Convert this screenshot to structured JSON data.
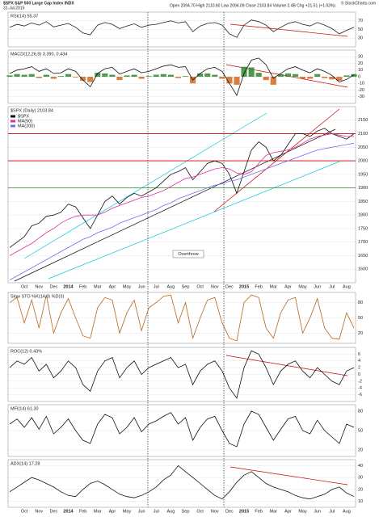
{
  "header": {
    "title": "$SPX S&P 500 Large Cap Index INDX",
    "date": "31-Jul-2015",
    "quote": "Open 2094.70 High 2110.60 Low 2094.09 Close 2103.84 Volume 2.4B Chg +21.51 (+1.03%)",
    "source": "© StockCharts.com"
  },
  "chart_data": [
    {
      "type": "line",
      "title": "RSI(14) 55.37",
      "ylim": [
        10,
        90
      ],
      "yticks": [
        30,
        50,
        70
      ],
      "grid": true,
      "series": [
        {
          "name": "RSI",
          "color": "#222222",
          "values": [
            55,
            62,
            58,
            65,
            60,
            68,
            56,
            60,
            64,
            55,
            42,
            38,
            60,
            66,
            62,
            52,
            58,
            63,
            55,
            60,
            62,
            66,
            70,
            65,
            68,
            45,
            58,
            64,
            66,
            60,
            40,
            32,
            60,
            72,
            68,
            60,
            45,
            55,
            64,
            68,
            62,
            58,
            66,
            60,
            52,
            40,
            48,
            55
          ]
        }
      ]
    },
    {
      "type": "line",
      "title": "MACD(12,26,9) 3.390, 0.434",
      "ylim": [
        -40,
        40
      ],
      "yticks": [
        -30,
        -20,
        -10,
        0,
        10,
        20,
        30
      ],
      "grid": true,
      "series": [
        {
          "name": "Histogram",
          "kind": "bar",
          "color": "#2e8b2e",
          "negative_color": "#d2691e",
          "values": [
            2,
            4,
            3,
            4,
            -2,
            3,
            -3,
            1,
            4,
            -1,
            -6,
            -8,
            6,
            5,
            3,
            -5,
            2,
            3,
            -3,
            1,
            3,
            4,
            3,
            -2,
            1,
            -10,
            5,
            5,
            3,
            -3,
            -10,
            -12,
            15,
            14,
            6,
            -5,
            -12,
            4,
            5,
            4,
            -3,
            -3,
            4,
            -2,
            -4,
            -6,
            2,
            4
          ]
        },
        {
          "name": "MACD",
          "color": "#111111",
          "values": [
            5,
            10,
            12,
            15,
            8,
            12,
            5,
            6,
            12,
            8,
            -5,
            -15,
            5,
            12,
            14,
            4,
            8,
            12,
            6,
            8,
            12,
            16,
            18,
            14,
            15,
            -5,
            5,
            12,
            14,
            8,
            -10,
            -28,
            5,
            25,
            28,
            18,
            -2,
            5,
            12,
            15,
            10,
            6,
            12,
            8,
            2,
            -8,
            -4,
            3
          ]
        }
      ]
    },
    {
      "type": "line",
      "title": "$SPX (Daily) 2103.84",
      "ylim": [
        1550,
        2200
      ],
      "yticks": [
        1600,
        1650,
        1700,
        1750,
        1800,
        1850,
        1900,
        1950,
        2000,
        2050,
        2100,
        2150
      ],
      "grid": true,
      "legend": "top-left",
      "hlines": [
        {
          "value": 2100,
          "color": "#cc0000"
        },
        {
          "value": 2000,
          "color": "#cc0000"
        },
        {
          "value": 1900,
          "color": "#2e8b2e"
        }
      ],
      "annotation": "Overthrow",
      "x_labels": [
        "Oct",
        "Nov",
        "Dec",
        "2014",
        "Feb",
        "Mar",
        "Apr",
        "May",
        "Jun",
        "Jul",
        "Aug",
        "Sep",
        "Oct",
        "Nov",
        "Dec",
        "2015",
        "Feb",
        "Mar",
        "Apr",
        "May",
        "Jun",
        "Jul",
        "Aug"
      ],
      "series": [
        {
          "name": "$SPX",
          "color": "#111111",
          "values": [
            1680,
            1700,
            1720,
            1760,
            1770,
            1795,
            1800,
            1810,
            1840,
            1830,
            1790,
            1750,
            1800,
            1850,
            1870,
            1840,
            1865,
            1880,
            1870,
            1885,
            1900,
            1925,
            1950,
            1960,
            1975,
            1930,
            1960,
            1990,
            2000,
            1990,
            1950,
            1880,
            1960,
            2040,
            2070,
            2050,
            2000,
            2020,
            2060,
            2100,
            2100,
            2090,
            2110,
            2120,
            2100,
            2090,
            2080,
            2100
          ]
        },
        {
          "name": "MA(50)",
          "color": "#e0309a",
          "values": [
            1650,
            1665,
            1680,
            1695,
            1715,
            1735,
            1750,
            1770,
            1785,
            1795,
            1800,
            1800,
            1800,
            1810,
            1825,
            1835,
            1845,
            1855,
            1865,
            1870,
            1880,
            1890,
            1905,
            1920,
            1935,
            1940,
            1950,
            1960,
            1970,
            1975,
            1970,
            1955,
            1950,
            1960,
            1990,
            2020,
            2030,
            2035,
            2040,
            2050,
            2065,
            2080,
            2090,
            2095,
            2100,
            2095,
            2090,
            2090
          ]
        },
        {
          "name": "MA(200)",
          "color": "#7b68ee",
          "values": [
            1560,
            1575,
            1590,
            1605,
            1620,
            1635,
            1650,
            1665,
            1680,
            1695,
            1710,
            1720,
            1735,
            1745,
            1755,
            1770,
            1780,
            1790,
            1800,
            1810,
            1820,
            1835,
            1845,
            1860,
            1870,
            1880,
            1890,
            1900,
            1910,
            1915,
            1925,
            1930,
            1940,
            1950,
            1960,
            1970,
            1980,
            1990,
            2000,
            2010,
            2020,
            2030,
            2040,
            2045,
            2050,
            2055,
            2060,
            2065
          ]
        }
      ]
    },
    {
      "type": "line",
      "title": "Slow STO %K(14,3) %D(3)",
      "ylim": [
        0,
        100
      ],
      "yticks": [
        20,
        50,
        80
      ],
      "grid": true,
      "series": [
        {
          "name": "%K",
          "color": "#b5651d",
          "values": [
            80,
            90,
            40,
            85,
            30,
            95,
            20,
            60,
            88,
            50,
            15,
            10,
            70,
            90,
            85,
            20,
            60,
            85,
            25,
            70,
            80,
            92,
            95,
            40,
            80,
            10,
            50,
            85,
            90,
            40,
            10,
            5,
            80,
            95,
            90,
            30,
            10,
            60,
            85,
            90,
            20,
            50,
            88,
            30,
            10,
            8,
            60,
            30
          ]
        }
      ]
    },
    {
      "type": "line",
      "title": "ROC(12) 0.43%",
      "ylim": [
        -8,
        8
      ],
      "yticks": [
        -6,
        -4,
        -2,
        0,
        2,
        4,
        6
      ],
      "grid": true,
      "series": [
        {
          "name": "ROC",
          "color": "#111111",
          "values": [
            2,
            4,
            3,
            5,
            1,
            3,
            -1,
            1,
            4,
            2,
            -3,
            -5,
            1,
            4,
            5,
            -1,
            2,
            4,
            0,
            2,
            3,
            4,
            5,
            2,
            3,
            -3,
            1,
            3,
            4,
            1,
            -4,
            -7,
            2,
            7,
            6,
            2,
            -3,
            1,
            3,
            4,
            1,
            -1,
            2,
            0,
            -2,
            -3,
            1,
            2
          ]
        }
      ]
    },
    {
      "type": "line",
      "title": "MFI(14) 61.30",
      "ylim": [
        10,
        90
      ],
      "yticks": [
        20,
        50,
        80
      ],
      "grid": true,
      "series": [
        {
          "name": "MFI",
          "color": "#111111",
          "values": [
            60,
            68,
            55,
            70,
            52,
            72,
            45,
            55,
            68,
            50,
            35,
            30,
            60,
            75,
            70,
            45,
            55,
            70,
            48,
            60,
            65,
            72,
            78,
            60,
            70,
            35,
            55,
            68,
            72,
            50,
            30,
            25,
            60,
            80,
            75,
            55,
            35,
            52,
            68,
            72,
            50,
            45,
            66,
            50,
            40,
            30,
            60,
            55
          ]
        }
      ]
    },
    {
      "type": "line",
      "title": "ADX(14) 17.28",
      "ylim": [
        5,
        45
      ],
      "yticks": [
        10,
        20,
        30,
        40
      ],
      "grid": true,
      "x_labels": [
        "Oct",
        "Nov",
        "Dec",
        "2014",
        "Feb",
        "Mar",
        "Apr",
        "May",
        "Jun",
        "Jul",
        "Aug",
        "Sep",
        "Oct",
        "Nov",
        "Dec",
        "2015",
        "Feb",
        "Mar",
        "Apr",
        "May",
        "Jun",
        "Jul",
        "Aug"
      ],
      "series": [
        {
          "name": "ADX",
          "color": "#111111",
          "values": [
            18,
            22,
            26,
            30,
            28,
            25,
            22,
            18,
            15,
            14,
            20,
            25,
            27,
            24,
            20,
            16,
            14,
            13,
            15,
            18,
            22,
            28,
            32,
            40,
            35,
            30,
            25,
            20,
            15,
            12,
            18,
            26,
            32,
            35,
            30,
            25,
            22,
            20,
            18,
            15,
            13,
            12,
            14,
            16,
            20,
            22,
            17,
            14
          ]
        }
      ]
    }
  ]
}
